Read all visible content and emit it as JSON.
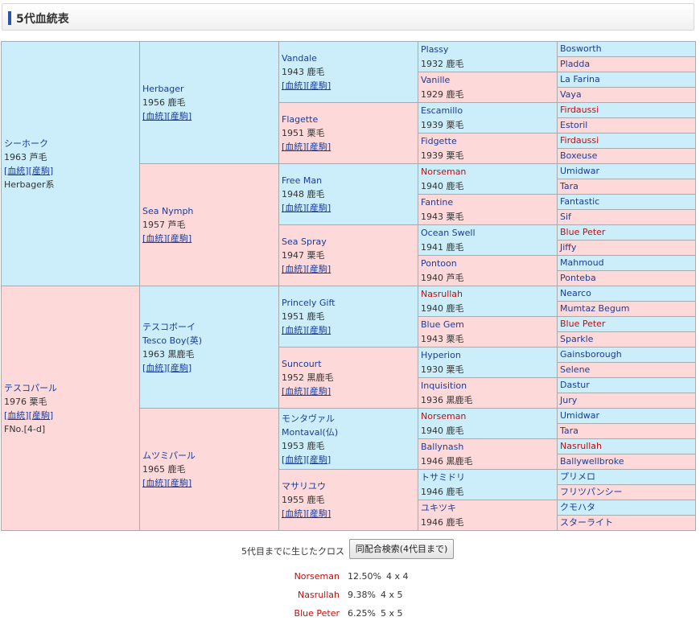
{
  "header": {
    "title": "5代血統表"
  },
  "links": {
    "pedigree": "[血統]",
    "produce": "[産駒]"
  },
  "sire": {
    "name": "シーホーク",
    "year_color": "1963 芦毛",
    "line": "Herbager系"
  },
  "dam": {
    "name": "テスコパール",
    "year_color": "1976 栗毛",
    "family": "FNo.[4-d]"
  },
  "gen2": [
    {
      "name": "Herbager",
      "year_color": "1956 鹿毛"
    },
    {
      "name": "Sea Nymph",
      "year_color": "1957 芦毛"
    },
    {
      "name": "テスコボーイ",
      "name2": "Tesco Boy(英)",
      "year_color": "1963 黒鹿毛"
    },
    {
      "name": "ムツミパール",
      "year_color": "1965 鹿毛"
    }
  ],
  "gen3": [
    {
      "name": "Vandale",
      "year_color": "1943 鹿毛"
    },
    {
      "name": "Flagette",
      "year_color": "1951 栗毛"
    },
    {
      "name": "Free Man",
      "year_color": "1948 鹿毛"
    },
    {
      "name": "Sea Spray",
      "year_color": "1947 栗毛"
    },
    {
      "name": "Princely Gift",
      "year_color": "1951 鹿毛"
    },
    {
      "name": "Suncourt",
      "year_color": "1952 黒鹿毛"
    },
    {
      "name": "モンタヴァル",
      "name2": "Montaval(仏)",
      "year_color": "1953 鹿毛"
    },
    {
      "name": "マサリユウ",
      "year_color": "1955 鹿毛"
    }
  ],
  "gen4": [
    {
      "name": "Plassy",
      "year_color": "1932 鹿毛"
    },
    {
      "name": "Vanille",
      "year_color": "1929 鹿毛"
    },
    {
      "name": "Escamillo",
      "year_color": "1939 栗毛"
    },
    {
      "name": "Fidgette",
      "year_color": "1939 栗毛"
    },
    {
      "name": "Norseman",
      "year_color": "1940 鹿毛",
      "cross": true
    },
    {
      "name": "Fantine",
      "year_color": "1943 栗毛"
    },
    {
      "name": "Ocean Swell",
      "year_color": "1941 鹿毛"
    },
    {
      "name": "Pontoon",
      "year_color": "1940 芦毛"
    },
    {
      "name": "Nasrullah",
      "year_color": "1940 鹿毛",
      "cross": true
    },
    {
      "name": "Blue Gem",
      "year_color": "1943 栗毛"
    },
    {
      "name": "Hyperion",
      "year_color": "1930 栗毛"
    },
    {
      "name": "Inquisition",
      "year_color": "1936 黒鹿毛"
    },
    {
      "name": "Norseman",
      "year_color": "1940 鹿毛",
      "cross": true
    },
    {
      "name": "Ballynash",
      "year_color": "1946 黒鹿毛"
    },
    {
      "name": "トサミドリ",
      "year_color": "1946 鹿毛"
    },
    {
      "name": "ユキツキ",
      "year_color": "1946 鹿毛"
    }
  ],
  "gen5": [
    {
      "name": "Bosworth"
    },
    {
      "name": "Pladda"
    },
    {
      "name": "La Farina"
    },
    {
      "name": "Vaya"
    },
    {
      "name": "Firdaussi",
      "cross": true
    },
    {
      "name": "Estoril"
    },
    {
      "name": "Firdaussi",
      "cross": true
    },
    {
      "name": "Boxeuse"
    },
    {
      "name": "Umidwar"
    },
    {
      "name": "Tara"
    },
    {
      "name": "Fantastic"
    },
    {
      "name": "Sif"
    },
    {
      "name": "Blue Peter",
      "cross": true
    },
    {
      "name": "Jiffy"
    },
    {
      "name": "Mahmoud"
    },
    {
      "name": "Ponteba"
    },
    {
      "name": "Nearco"
    },
    {
      "name": "Mumtaz Begum"
    },
    {
      "name": "Blue Peter",
      "cross": true
    },
    {
      "name": "Sparkle"
    },
    {
      "name": "Gainsborough"
    },
    {
      "name": "Selene"
    },
    {
      "name": "Dastur"
    },
    {
      "name": "Jury"
    },
    {
      "name": "Umidwar"
    },
    {
      "name": "Tara"
    },
    {
      "name": "Nasrullah",
      "cross": true
    },
    {
      "name": "Ballywellbroke"
    },
    {
      "name": "プリメロ"
    },
    {
      "name": "フリツパンシー"
    },
    {
      "name": "クモハタ"
    },
    {
      "name": "スターライト"
    }
  ],
  "cross_section": {
    "label": "5代目までに生じたクロス",
    "button": "同配合検索(4代目まで)",
    "rows": [
      {
        "name": "Norseman",
        "pct": "12.50%",
        "gens": "4 x 4"
      },
      {
        "name": "Nasrullah",
        "pct": "9.38%",
        "gens": "4 x 5"
      },
      {
        "name": "Blue Peter",
        "pct": "6.25%",
        "gens": "5 x 5"
      }
    ]
  },
  "colors": {
    "male_bg": "#cbeefa",
    "female_bg": "#fdd9d9",
    "link": "#1a3c9a",
    "cross_red": "#bb1111",
    "header_bar": "#2b55a8"
  }
}
